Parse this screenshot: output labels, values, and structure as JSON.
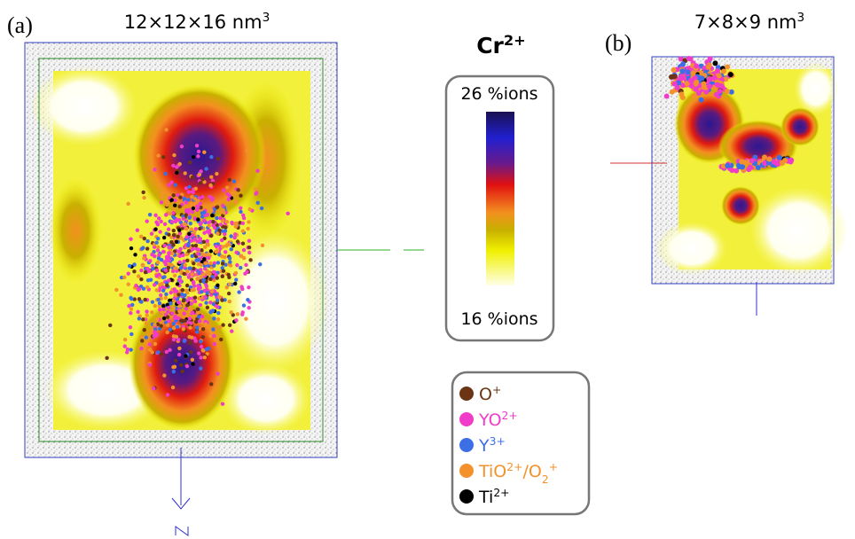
{
  "panel_a": {
    "tag": "(a)",
    "size": [
      "12×12×16 nm",
      {
        "sup": "3"
      }
    ]
  },
  "colorbar": {
    "title": [
      "Cr",
      {
        "sup": "2+"
      }
    ],
    "max_label": "26 %ions",
    "min_label": "16 %ions"
  },
  "panel_b": {
    "tag": "(b)",
    "size": [
      "7×8×9 nm",
      {
        "sup": "3"
      }
    ]
  },
  "legend": {
    "items": [
      {
        "label": [
          "O",
          {
            "sup": "+"
          }
        ],
        "color": "#6b3514"
      },
      {
        "label": [
          "YO",
          {
            "sup": "2+"
          }
        ],
        "color": "#f03cc8"
      },
      {
        "label": [
          "Y",
          {
            "sup": "3+"
          }
        ],
        "color": "#3c6ee6"
      },
      {
        "label": [
          "TiO",
          {
            "sup": "2+"
          },
          "/O",
          {
            "sub": "2"
          },
          {
            "sup": "+"
          }
        ],
        "color": "#f3922c"
      },
      {
        "label": [
          "Ti",
          {
            "sup": "2+"
          }
        ],
        "color": "#000000"
      }
    ]
  }
}
